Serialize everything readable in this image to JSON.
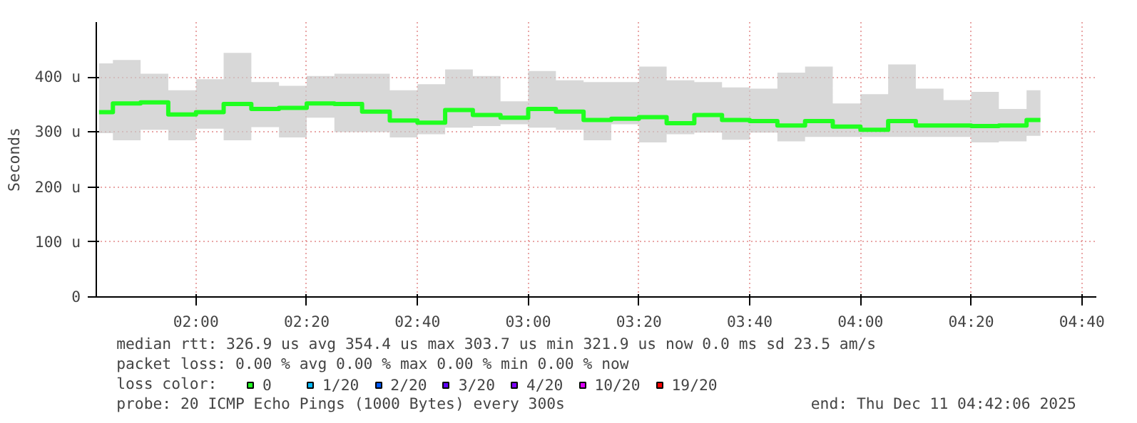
{
  "chart_data": {
    "type": "step",
    "ylabel": "Seconds",
    "legend_title": "loss color:",
    "legend": "bottom",
    "grid": true,
    "line_style": "solid",
    "marker": "none",
    "x": [
      1.7083,
      1.7917,
      1.875,
      1.9583,
      2.0417,
      2.125,
      2.2083,
      2.2917,
      2.375,
      2.4583,
      2.5417,
      2.625,
      2.7083,
      2.7917,
      2.875,
      2.9583,
      3.0417,
      3.125,
      3.2083,
      3.2917,
      3.375,
      3.4583,
      3.5417,
      3.625,
      3.7083,
      3.7917,
      3.875,
      3.9583,
      4.0417,
      4.125,
      4.2083,
      4.2917,
      4.375,
      4.4583,
      4.5417
    ],
    "xlim": [
      1.7,
      4.71
    ],
    "xticks": [
      {
        "value": 2.0,
        "label": "02:00"
      },
      {
        "value": 2.3333,
        "label": "02:20"
      },
      {
        "value": 2.6667,
        "label": "02:40"
      },
      {
        "value": 3.0,
        "label": "03:00"
      },
      {
        "value": 3.3333,
        "label": "03:20"
      },
      {
        "value": 3.6667,
        "label": "03:40"
      },
      {
        "value": 4.0,
        "label": "04:00"
      },
      {
        "value": 4.3333,
        "label": "04:20"
      },
      {
        "value": 4.6667,
        "label": "04:40"
      }
    ],
    "ylim": [
      0,
      500
    ],
    "yticks": [
      0,
      {
        "value": 100,
        "label": "100 u"
      },
      {
        "value": 200,
        "label": "200 u"
      },
      {
        "value": 300,
        "label": "300 u"
      },
      {
        "value": 400,
        "label": "400 u"
      }
    ],
    "series": [
      {
        "name": "0",
        "color": "#20ff20",
        "values": [
          336,
          352,
          354,
          332,
          336,
          351,
          342,
          344,
          352,
          351,
          337,
          321,
          317,
          340,
          331,
          326,
          342,
          337,
          322,
          324,
          327,
          316,
          331,
          322,
          320,
          312,
          320,
          310,
          304,
          320,
          312,
          312,
          311,
          312,
          322
        ],
        "lower": [
          298,
          285,
          304,
          285,
          306,
          285,
          309,
          290,
          326,
          300,
          300,
          290,
          296,
          308,
          311,
          314,
          308,
          304,
          285,
          314,
          281,
          296,
          299,
          286,
          299,
          283,
          291,
          291,
          291,
          291,
          291,
          291,
          281,
          283,
          293
        ],
        "upper": [
          425,
          431,
          406,
          376,
          396,
          444,
          391,
          384,
          402,
          406,
          406,
          376,
          387,
          414,
          402,
          356,
          411,
          394,
          391,
          391,
          419,
          394,
          391,
          381,
          379,
          408,
          419,
          352,
          369,
          423,
          379,
          358,
          373,
          342,
          376
        ]
      },
      {
        "name": "1/20",
        "color": "#00b8ff",
        "values": [
          null,
          null,
          null,
          null,
          null,
          null,
          null,
          null,
          null,
          null,
          null,
          null,
          null,
          null,
          null,
          null,
          null,
          null,
          null,
          null,
          null,
          null,
          null,
          null,
          null,
          null,
          null,
          null,
          null,
          null,
          null,
          null,
          null,
          null,
          null
        ]
      },
      {
        "name": "2/20",
        "color": "#0059ff",
        "values": [
          null,
          null,
          null,
          null,
          null,
          null,
          null,
          null,
          null,
          null,
          null,
          null,
          null,
          null,
          null,
          null,
          null,
          null,
          null,
          null,
          null,
          null,
          null,
          null,
          null,
          null,
          null,
          null,
          null,
          null,
          null,
          null,
          null,
          null,
          null
        ]
      },
      {
        "name": "3/20",
        "color": "#5e00ff",
        "values": [
          null,
          null,
          null,
          null,
          null,
          null,
          null,
          null,
          null,
          null,
          null,
          null,
          null,
          null,
          null,
          null,
          null,
          null,
          null,
          null,
          null,
          null,
          null,
          null,
          null,
          null,
          null,
          null,
          null,
          null,
          null,
          null,
          null,
          null,
          null
        ]
      },
      {
        "name": "4/20",
        "color": "#7e00ff",
        "values": [
          null,
          null,
          null,
          null,
          null,
          null,
          null,
          null,
          null,
          null,
          null,
          null,
          null,
          null,
          null,
          null,
          null,
          null,
          null,
          null,
          null,
          null,
          null,
          null,
          null,
          null,
          null,
          null,
          null,
          null,
          null,
          null,
          null,
          null,
          null
        ]
      },
      {
        "name": "10/20",
        "color": "#dd00ff",
        "values": [
          null,
          null,
          null,
          null,
          null,
          null,
          null,
          null,
          null,
          null,
          null,
          null,
          null,
          null,
          null,
          null,
          null,
          null,
          null,
          null,
          null,
          null,
          null,
          null,
          null,
          null,
          null,
          null,
          null,
          null,
          null,
          null,
          null,
          null,
          null
        ]
      },
      {
        "name": "19/20",
        "color": "#ff0000",
        "values": [
          null,
          null,
          null,
          null,
          null,
          null,
          null,
          null,
          null,
          null,
          null,
          null,
          null,
          null,
          null,
          null,
          null,
          null,
          null,
          null,
          null,
          null,
          null,
          null,
          null,
          null,
          null,
          null,
          null,
          null,
          null,
          null,
          null,
          null,
          null
        ]
      }
    ],
    "annotations": [
      "median rtt:  326.9 us avg  354.4 us max  303.7 us min  321.9 us now  0.0 ms sd  23.5   am/s",
      "packet loss: 0.00 % avg  0.00 % max  0.00 % min  0.00 % now",
      "probe:       20 ICMP Echo Pings (1000 Bytes) every 300s",
      "end: Thu Dec 11 04:42:06 2025"
    ]
  }
}
